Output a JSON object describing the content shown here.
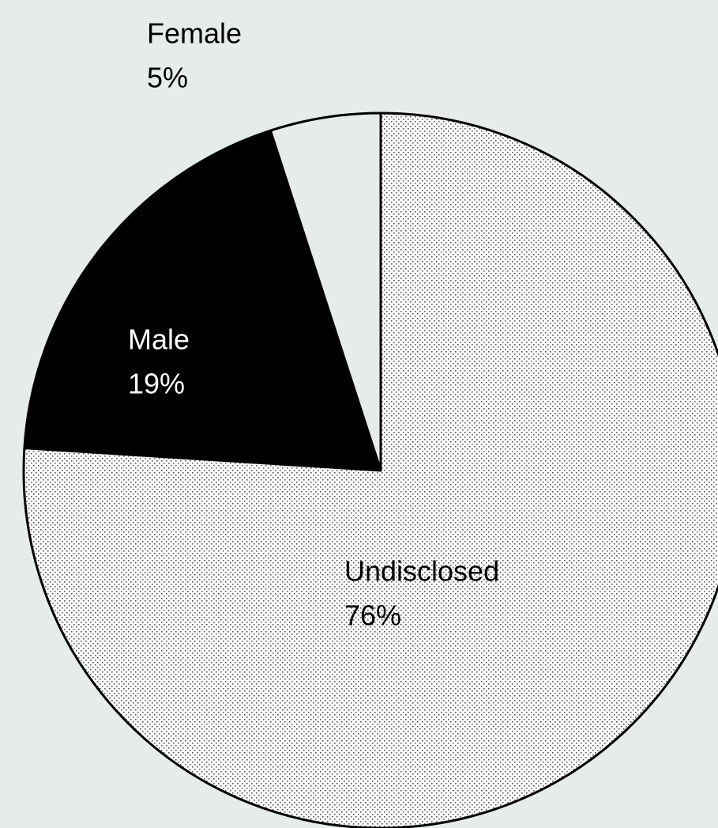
{
  "chart_data": {
    "type": "pie",
    "categories": [
      "Female",
      "Male",
      "Undisclosed"
    ],
    "values": [
      5,
      19,
      76
    ],
    "value_labels": [
      "5%",
      "19%",
      "76%"
    ],
    "colors": [
      "#e6ecea",
      "#000000",
      "#ffffff"
    ],
    "label_colors": [
      "#000000",
      "#ffffff",
      "#000000"
    ],
    "patterns": [
      null,
      null,
      "dots"
    ]
  }
}
